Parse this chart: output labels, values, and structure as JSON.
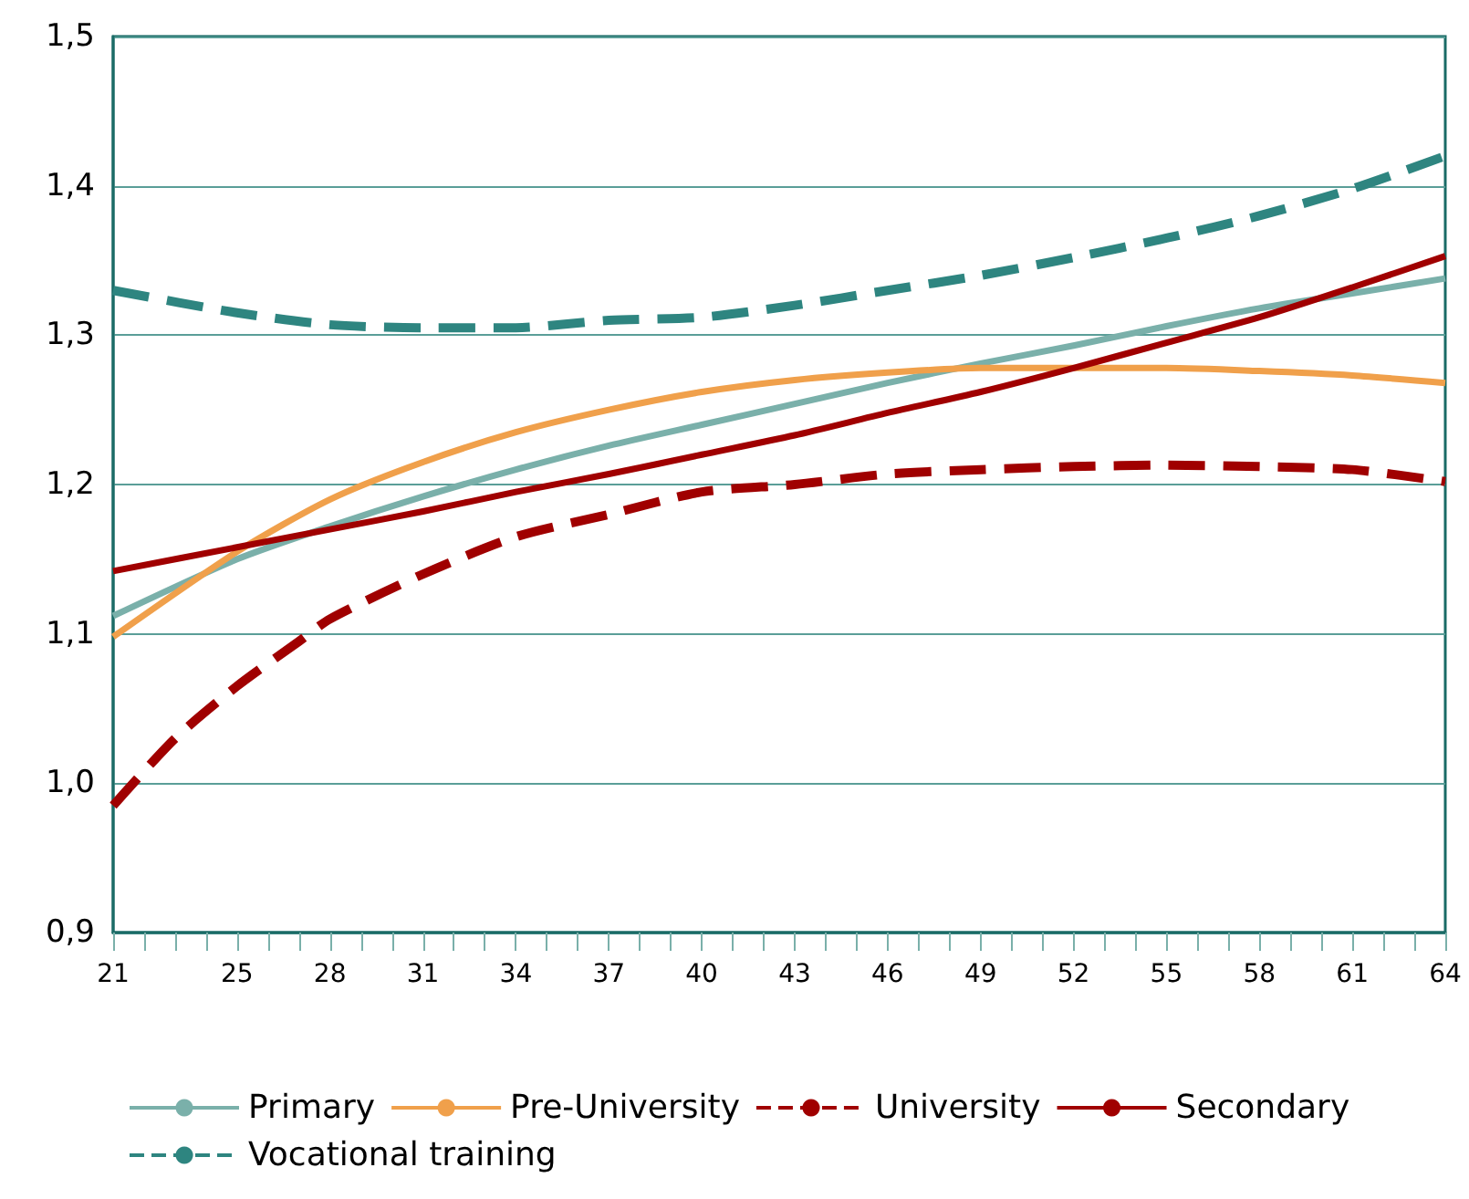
{
  "chart_data": {
    "type": "line",
    "x": [
      21,
      25,
      28,
      31,
      34,
      37,
      40,
      43,
      46,
      49,
      52,
      55,
      58,
      61,
      64
    ],
    "series": [
      {
        "name": "Primary",
        "color": "#7ab0aa",
        "line_style": "solid",
        "values": [
          1.112,
          1.15,
          1.172,
          1.192,
          1.21,
          1.226,
          1.24,
          1.254,
          1.268,
          1.281,
          1.293,
          1.306,
          1.318,
          1.328,
          1.338
        ]
      },
      {
        "name": "Pre-University",
        "color": "#f0a04b",
        "line_style": "solid",
        "values": [
          1.098,
          1.155,
          1.19,
          1.215,
          1.235,
          1.25,
          1.262,
          1.27,
          1.275,
          1.278,
          1.278,
          1.278,
          1.276,
          1.273,
          1.268
        ]
      },
      {
        "name": "University",
        "color": "#a00000",
        "line_style": "dashed",
        "x": [
          21,
          23,
          25,
          27,
          28,
          31,
          34,
          37,
          40,
          43,
          46,
          49,
          52,
          55,
          58,
          61,
          64
        ],
        "values": [
          0.985,
          1.03,
          1.065,
          1.095,
          1.11,
          1.14,
          1.165,
          1.18,
          1.195,
          1.2,
          1.207,
          1.21,
          1.212,
          1.213,
          1.212,
          1.21,
          1.202
        ]
      },
      {
        "name": "Secondary",
        "color": "#a00000",
        "line_style": "solid",
        "values": [
          1.142,
          1.158,
          1.17,
          1.182,
          1.195,
          1.207,
          1.22,
          1.233,
          1.248,
          1.262,
          1.278,
          1.295,
          1.312,
          1.332,
          1.353
        ]
      },
      {
        "name": "Vocational training",
        "color": "#2e8580",
        "line_style": "dashed",
        "values": [
          1.33,
          1.315,
          1.307,
          1.305,
          1.305,
          1.31,
          1.312,
          1.32,
          1.33,
          1.34,
          1.352,
          1.365,
          1.38,
          1.398,
          1.42
        ]
      }
    ],
    "xlim": [
      21,
      64
    ],
    "xticks": [
      21,
      {
        "value": 22,
        "label": null
      },
      {
        "value": 23,
        "label": null
      },
      {
        "value": 24,
        "label": null
      },
      25,
      {
        "value": 26,
        "label": null
      },
      {
        "value": 27,
        "label": null
      },
      28,
      {
        "value": 29,
        "label": null
      },
      {
        "value": 30,
        "label": null
      },
      31,
      {
        "value": 32,
        "label": null
      },
      {
        "value": 33,
        "label": null
      },
      34,
      {
        "value": 35,
        "label": null
      },
      {
        "value": 36,
        "label": null
      },
      37,
      {
        "value": 38,
        "label": null
      },
      {
        "value": 39,
        "label": null
      },
      40,
      {
        "value": 41,
        "label": null
      },
      {
        "value": 42,
        "label": null
      },
      43,
      {
        "value": 44,
        "label": null
      },
      {
        "value": 45,
        "label": null
      },
      46,
      {
        "value": 47,
        "label": null
      },
      {
        "value": 48,
        "label": null
      },
      49,
      {
        "value": 50,
        "label": null
      },
      {
        "value": 51,
        "label": null
      },
      52,
      {
        "value": 53,
        "label": null
      },
      {
        "value": 54,
        "label": null
      },
      55,
      {
        "value": 56,
        "label": null
      },
      {
        "value": 57,
        "label": null
      },
      58,
      {
        "value": 59,
        "label": null
      },
      {
        "value": 60,
        "label": null
      },
      61,
      {
        "value": 62,
        "label": null
      },
      {
        "value": 63,
        "label": null
      },
      64
    ],
    "ylim": [
      0.9,
      1.5
    ],
    "yticks": [
      {
        "value": 0.9,
        "label": "0,9"
      },
      {
        "value": 1.0,
        "label": "1,0"
      },
      {
        "value": 1.1,
        "label": "1,1"
      },
      {
        "value": 1.2,
        "label": "1,2"
      },
      {
        "value": 1.3,
        "label": "1,3"
      },
      {
        "value": 1.4,
        "label": "1,4"
      },
      {
        "value": 1.5,
        "label": "1,5"
      }
    ],
    "grid": "y",
    "legend": "bottom",
    "marker": "none"
  }
}
